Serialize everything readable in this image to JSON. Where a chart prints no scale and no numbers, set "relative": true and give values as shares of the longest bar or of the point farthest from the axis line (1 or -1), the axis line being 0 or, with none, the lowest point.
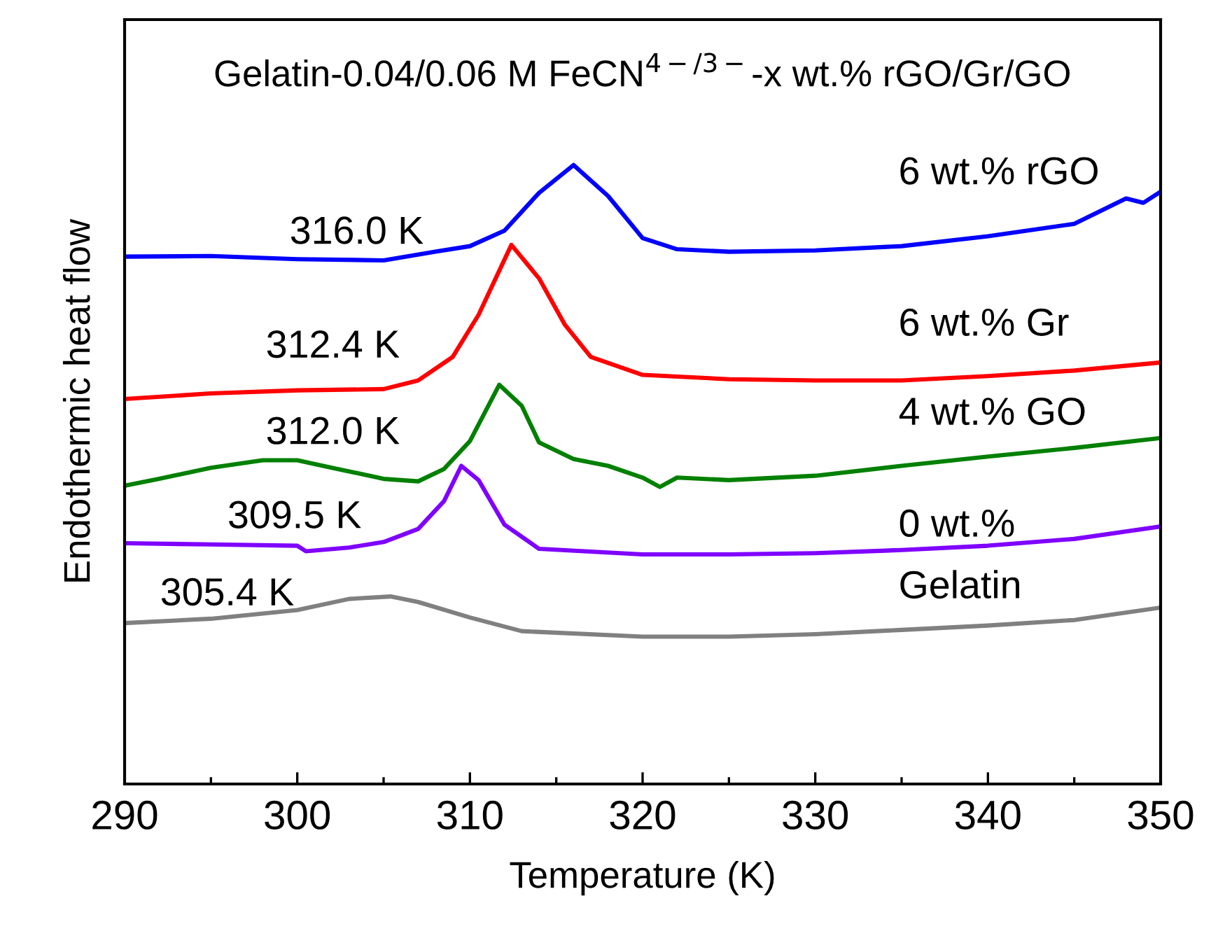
{
  "chart_data": {
    "type": "line",
    "relative": true,
    "title": "Gelatin-0.04/0.06 M FeCN$^{4−/3−}$-x wt.% rGO/Gr/GO",
    "xlabel": "Temperature (K)",
    "ylabel": "Endothermic heat flow",
    "xlim": [
      290,
      350
    ],
    "xticks": [
      290,
      300,
      310,
      320,
      330,
      340,
      350
    ],
    "tick_labels": "x",
    "grid": false,
    "legend": false,
    "line_style": "solid",
    "marker": "none",
    "series": [
      {
        "name": "6 wt.% rGO",
        "color": "#0000ff",
        "x": [
          290,
          295,
          300,
          305,
          308,
          310,
          312,
          314,
          316,
          318,
          320,
          322,
          325,
          330,
          335,
          340,
          345,
          348,
          349,
          350
        ],
        "values": [
          0.852,
          0.853,
          0.848,
          0.846,
          0.86,
          0.869,
          0.894,
          0.955,
          1.0,
          0.95,
          0.882,
          0.864,
          0.86,
          0.862,
          0.869,
          0.885,
          0.905,
          0.946,
          0.939,
          0.957
        ]
      },
      {
        "name": "6 wt.% Gr",
        "color": "#ff0000",
        "x": [
          290,
          295,
          300,
          305,
          307,
          309,
          310.5,
          312.4,
          314,
          315.5,
          317,
          320,
          325,
          330,
          335,
          340,
          345,
          350
        ],
        "values": [
          0.622,
          0.631,
          0.636,
          0.638,
          0.652,
          0.69,
          0.758,
          0.871,
          0.817,
          0.742,
          0.69,
          0.661,
          0.654,
          0.652,
          0.652,
          0.659,
          0.668,
          0.681
        ]
      },
      {
        "name": "4 wt.% GO",
        "color": "#008000",
        "x": [
          290,
          292,
          295,
          298,
          300,
          302,
          305,
          307,
          308.5,
          310,
          311.7,
          313,
          314,
          316,
          318,
          320,
          321,
          322,
          325,
          330,
          335,
          340,
          345,
          350
        ],
        "values": [
          0.482,
          0.493,
          0.511,
          0.523,
          0.523,
          0.511,
          0.493,
          0.489,
          0.509,
          0.554,
          0.645,
          0.611,
          0.552,
          0.525,
          0.514,
          0.495,
          0.48,
          0.495,
          0.491,
          0.498,
          0.514,
          0.529,
          0.543,
          0.559
        ]
      },
      {
        "name": "0 wt.%",
        "color": "#7f00ff",
        "x": [
          290,
          295,
          300,
          300.5,
          303,
          305,
          307,
          308.5,
          309.5,
          310.5,
          312,
          314,
          320,
          325,
          330,
          335,
          340,
          345,
          350
        ],
        "values": [
          0.389,
          0.387,
          0.385,
          0.376,
          0.382,
          0.391,
          0.412,
          0.457,
          0.514,
          0.491,
          0.419,
          0.38,
          0.371,
          0.371,
          0.373,
          0.378,
          0.385,
          0.396,
          0.416
        ]
      },
      {
        "name": "Gelatin",
        "color": "#808080",
        "x": [
          290,
          295,
          300,
          303,
          305.4,
          307,
          310,
          313,
          320,
          325,
          330,
          335,
          340,
          345,
          350
        ],
        "values": [
          0.26,
          0.267,
          0.281,
          0.299,
          0.303,
          0.294,
          0.269,
          0.247,
          0.238,
          0.238,
          0.242,
          0.249,
          0.256,
          0.265,
          0.285
        ]
      }
    ],
    "annotations": [
      "316.0 K",
      "312.4 K",
      "312.0 K",
      "309.5 K",
      "305.4 K"
    ]
  }
}
